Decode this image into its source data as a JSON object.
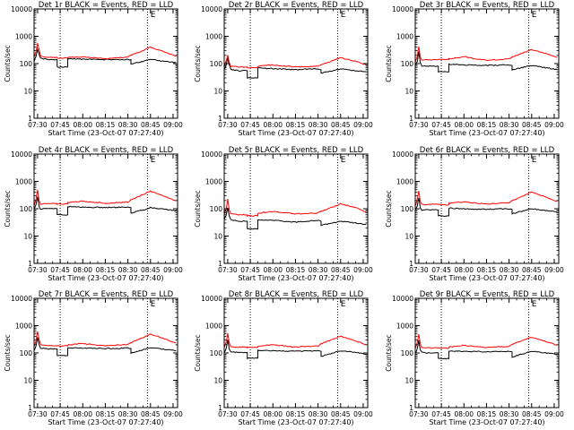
{
  "page": {
    "background": "#ffffff",
    "colors": {
      "events": "#000000",
      "lld": "#ff0000",
      "frame": "#000000",
      "marker": "#000000"
    }
  },
  "time_ticks": [
    "07:30",
    "07:45",
    "08:00",
    "08:15",
    "08:30",
    "08:45",
    "09:00"
  ],
  "y_ticks": [
    "1",
    "10",
    "100",
    "1000",
    "10000"
  ],
  "xlabel": "Start Time (23-Oct-07 07:27:40)",
  "ylabel": "Counts/sec",
  "scale": {
    "y": "log",
    "x": "time"
  },
  "chart_data": [
    {
      "type": "line",
      "title": "Det 1r BLACK = Events, RED = LLD",
      "x_times": [
        "07:27:40",
        "07:29",
        "07:30",
        "07:31",
        "07:32",
        "07:34",
        "07:38",
        "07:43",
        "07:43",
        "07:50",
        "07:50",
        "08:00",
        "08:15",
        "08:30",
        "08:32",
        "08:32",
        "08:40",
        "08:45",
        "08:55",
        "09:02"
      ],
      "xlim": [
        "07:27:40",
        "09:03:00"
      ],
      "ylim": [
        1,
        10000
      ],
      "x_markers": [
        "07:45",
        "08:43"
      ],
      "label_marker": "08:45",
      "label_marker_text": "E",
      "series": [
        {
          "name": "Events",
          "color": "#000000",
          "values": [
            120,
            180,
            350,
            220,
            160,
            150,
            140,
            140,
            75,
            75,
            150,
            145,
            140,
            140,
            140,
            95,
            120,
            140,
            120,
            110
          ]
        },
        {
          "name": "LLD",
          "color": "#ff0000",
          "values": [
            170,
            280,
            560,
            320,
            190,
            175,
            170,
            170,
            160,
            160,
            170,
            175,
            150,
            175,
            200,
            200,
            300,
            400,
            260,
            180
          ]
        }
      ]
    },
    {
      "type": "line",
      "title": "Det 2r BLACK = Events, RED = LLD",
      "x_times": [
        "07:27:40",
        "07:29",
        "07:30",
        "07:31",
        "07:32",
        "07:34",
        "07:38",
        "07:43",
        "07:43",
        "07:50",
        "07:50",
        "08:00",
        "08:15",
        "08:30",
        "08:32",
        "08:32",
        "08:40",
        "08:45",
        "08:55",
        "09:02"
      ],
      "xlim": [
        "07:27:40",
        "09:03:00"
      ],
      "ylim": [
        1,
        10000
      ],
      "x_markers": [
        "07:45",
        "08:43"
      ],
      "label_marker": "08:45",
      "label_marker_text": "E",
      "series": [
        {
          "name": "Events",
          "color": "#000000",
          "values": [
            60,
            90,
            160,
            90,
            62,
            58,
            55,
            55,
            30,
            30,
            70,
            65,
            60,
            65,
            60,
            45,
            55,
            65,
            55,
            50
          ]
        },
        {
          "name": "LLD",
          "color": "#ff0000",
          "values": [
            80,
            130,
            200,
            110,
            80,
            78,
            75,
            75,
            70,
            70,
            80,
            90,
            75,
            80,
            90,
            90,
            130,
            165,
            120,
            90
          ]
        }
      ]
    },
    {
      "type": "line",
      "title": "Det 3r BLACK = Events, RED = LLD",
      "x_times": [
        "07:27:40",
        "07:29",
        "07:30",
        "07:31",
        "07:32",
        "07:34",
        "07:38",
        "07:43",
        "07:43",
        "07:50",
        "07:50",
        "08:00",
        "08:15",
        "08:30",
        "08:32",
        "08:32",
        "08:40",
        "08:45",
        "08:55",
        "09:02"
      ],
      "xlim": [
        "07:27:40",
        "09:03:00"
      ],
      "ylim": [
        1,
        10000
      ],
      "x_markers": [
        "07:45",
        "08:43"
      ],
      "label_marker": "08:45",
      "label_marker_text": "E",
      "series": [
        {
          "name": "Events",
          "color": "#000000",
          "values": [
            85,
            120,
            270,
            110,
            80,
            82,
            80,
            80,
            50,
            50,
            95,
            90,
            85,
            90,
            85,
            60,
            75,
            85,
            70,
            60
          ]
        },
        {
          "name": "LLD",
          "color": "#ff0000",
          "values": [
            110,
            180,
            420,
            180,
            135,
            140,
            140,
            140,
            140,
            140,
            150,
            180,
            130,
            150,
            175,
            175,
            250,
            330,
            230,
            170
          ]
        }
      ]
    },
    {
      "type": "line",
      "title": "Det 4r BLACK = Events, RED = LLD",
      "x_times": [
        "07:27:40",
        "07:29",
        "07:30",
        "07:31",
        "07:32",
        "07:34",
        "07:38",
        "07:43",
        "07:43",
        "07:50",
        "07:50",
        "08:00",
        "08:15",
        "08:30",
        "08:32",
        "08:32",
        "08:40",
        "08:45",
        "08:55",
        "09:02"
      ],
      "xlim": [
        "07:27:40",
        "09:03:00"
      ],
      "ylim": [
        1,
        10000
      ],
      "x_markers": [
        "07:45",
        "08:43"
      ],
      "label_marker": "08:45",
      "label_marker_text": "E",
      "series": [
        {
          "name": "Events",
          "color": "#000000",
          "values": [
            95,
            140,
            280,
            120,
            95,
            100,
            100,
            100,
            60,
            60,
            120,
            115,
            110,
            115,
            110,
            70,
            90,
            110,
            95,
            85
          ]
        },
        {
          "name": "LLD",
          "color": "#ff0000",
          "values": [
            130,
            230,
            480,
            200,
            145,
            150,
            155,
            155,
            150,
            150,
            165,
            190,
            160,
            175,
            210,
            210,
            330,
            440,
            270,
            190
          ]
        }
      ]
    },
    {
      "type": "line",
      "title": "Det 5r BLACK = Events, RED = LLD",
      "x_times": [
        "07:27:40",
        "07:29",
        "07:30",
        "07:31",
        "07:32",
        "07:34",
        "07:38",
        "07:43",
        "07:43",
        "07:50",
        "07:50",
        "08:00",
        "08:15",
        "08:30",
        "08:32",
        "08:32",
        "08:40",
        "08:45",
        "08:55",
        "09:02"
      ],
      "xlim": [
        "07:27:40",
        "09:03:00"
      ],
      "ylim": [
        1,
        10000
      ],
      "x_markers": [
        "07:45",
        "08:43"
      ],
      "label_marker": "08:45",
      "label_marker_text": "E",
      "series": [
        {
          "name": "Events",
          "color": "#000000",
          "values": [
            40,
            60,
            105,
            55,
            40,
            38,
            35,
            35,
            18,
            18,
            40,
            38,
            32,
            38,
            35,
            25,
            30,
            35,
            30,
            26
          ]
        },
        {
          "name": "LLD",
          "color": "#ff0000",
          "values": [
            65,
            100,
            220,
            90,
            65,
            62,
            60,
            60,
            55,
            55,
            68,
            80,
            65,
            70,
            80,
            80,
            115,
            150,
            110,
            75
          ]
        }
      ]
    },
    {
      "type": "line",
      "title": "Det 6r BLACK = Events, RED = LLD",
      "x_times": [
        "07:27:40",
        "07:29",
        "07:30",
        "07:31",
        "07:32",
        "07:34",
        "07:38",
        "07:43",
        "07:43",
        "07:50",
        "07:50",
        "08:00",
        "08:15",
        "08:30",
        "08:32",
        "08:32",
        "08:40",
        "08:45",
        "08:55",
        "09:02"
      ],
      "xlim": [
        "07:27:40",
        "09:03:00"
      ],
      "ylim": [
        1,
        10000
      ],
      "x_markers": [
        "07:45",
        "08:43"
      ],
      "label_marker": "08:45",
      "label_marker_text": "E",
      "series": [
        {
          "name": "Events",
          "color": "#000000",
          "values": [
            90,
            130,
            250,
            110,
            90,
            92,
            90,
            90,
            55,
            55,
            105,
            100,
            95,
            100,
            95,
            65,
            85,
            100,
            85,
            75
          ]
        },
        {
          "name": "LLD",
          "color": "#ff0000",
          "values": [
            120,
            210,
            450,
            190,
            140,
            140,
            145,
            145,
            140,
            140,
            155,
            180,
            150,
            165,
            195,
            195,
            300,
            410,
            260,
            185
          ]
        }
      ]
    },
    {
      "type": "line",
      "title": "Det 7r BLACK = Events, RED = LLD",
      "x_times": [
        "07:27:40",
        "07:29",
        "07:30",
        "07:31",
        "07:32",
        "07:34",
        "07:38",
        "07:43",
        "07:43",
        "07:50",
        "07:50",
        "08:00",
        "08:15",
        "08:30",
        "08:32",
        "08:32",
        "08:40",
        "08:45",
        "08:55",
        "09:02"
      ],
      "xlim": [
        "07:27:40",
        "09:03:00"
      ],
      "ylim": [
        1,
        10000
      ],
      "x_markers": [
        "07:45",
        "08:43"
      ],
      "label_marker": "08:45",
      "label_marker_text": "E",
      "series": [
        {
          "name": "Events",
          "color": "#000000",
          "values": [
            120,
            190,
            380,
            210,
            150,
            145,
            140,
            140,
            80,
            80,
            155,
            150,
            145,
            150,
            145,
            100,
            130,
            155,
            135,
            120
          ]
        },
        {
          "name": "LLD",
          "color": "#ff0000",
          "values": [
            170,
            290,
            620,
            300,
            200,
            190,
            185,
            185,
            180,
            180,
            195,
            220,
            185,
            200,
            235,
            235,
            370,
            500,
            320,
            230
          ]
        }
      ]
    },
    {
      "type": "line",
      "title": "Det 8r BLACK = Events, RED = LLD",
      "x_times": [
        "07:27:40",
        "07:29",
        "07:30",
        "07:31",
        "07:32",
        "07:34",
        "07:38",
        "07:43",
        "07:43",
        "07:50",
        "07:50",
        "08:00",
        "08:15",
        "08:30",
        "08:32",
        "08:32",
        "08:40",
        "08:45",
        "08:55",
        "09:02"
      ],
      "xlim": [
        "07:27:40",
        "09:03:00"
      ],
      "ylim": [
        1,
        10000
      ],
      "x_markers": [
        "07:45",
        "08:43"
      ],
      "label_marker": "08:45",
      "label_marker_text": "E",
      "series": [
        {
          "name": "Events",
          "color": "#000000",
          "values": [
            100,
            150,
            300,
            140,
            110,
            108,
            105,
            105,
            65,
            65,
            125,
            120,
            115,
            120,
            115,
            75,
            100,
            120,
            105,
            90
          ]
        },
        {
          "name": "LLD",
          "color": "#ff0000",
          "values": [
            150,
            250,
            520,
            230,
            170,
            165,
            165,
            165,
            160,
            160,
            175,
            200,
            165,
            180,
            215,
            215,
            320,
            410,
            280,
            200
          ]
        }
      ]
    },
    {
      "type": "line",
      "title": "Det 9r BLACK = Events, RED = LLD",
      "x_times": [
        "07:27:40",
        "07:29",
        "07:30",
        "07:31",
        "07:32",
        "07:34",
        "07:38",
        "07:43",
        "07:43",
        "07:50",
        "07:50",
        "08:00",
        "08:15",
        "08:30",
        "08:32",
        "08:32",
        "08:40",
        "08:45",
        "08:55",
        "09:02"
      ],
      "xlim": [
        "07:27:40",
        "09:03:00"
      ],
      "ylim": [
        1,
        10000
      ],
      "x_markers": [
        "07:45",
        "08:43"
      ],
      "label_marker": "08:45",
      "label_marker_text": "E",
      "series": [
        {
          "name": "Events",
          "color": "#000000",
          "values": [
            95,
            140,
            290,
            130,
            105,
            102,
            100,
            100,
            62,
            62,
            120,
            115,
            110,
            115,
            110,
            72,
            95,
            115,
            100,
            88
          ]
        },
        {
          "name": "LLD",
          "color": "#ff0000",
          "values": [
            140,
            240,
            500,
            220,
            160,
            158,
            155,
            155,
            150,
            150,
            165,
            190,
            160,
            175,
            205,
            205,
            300,
            380,
            260,
            190
          ]
        }
      ]
    }
  ]
}
